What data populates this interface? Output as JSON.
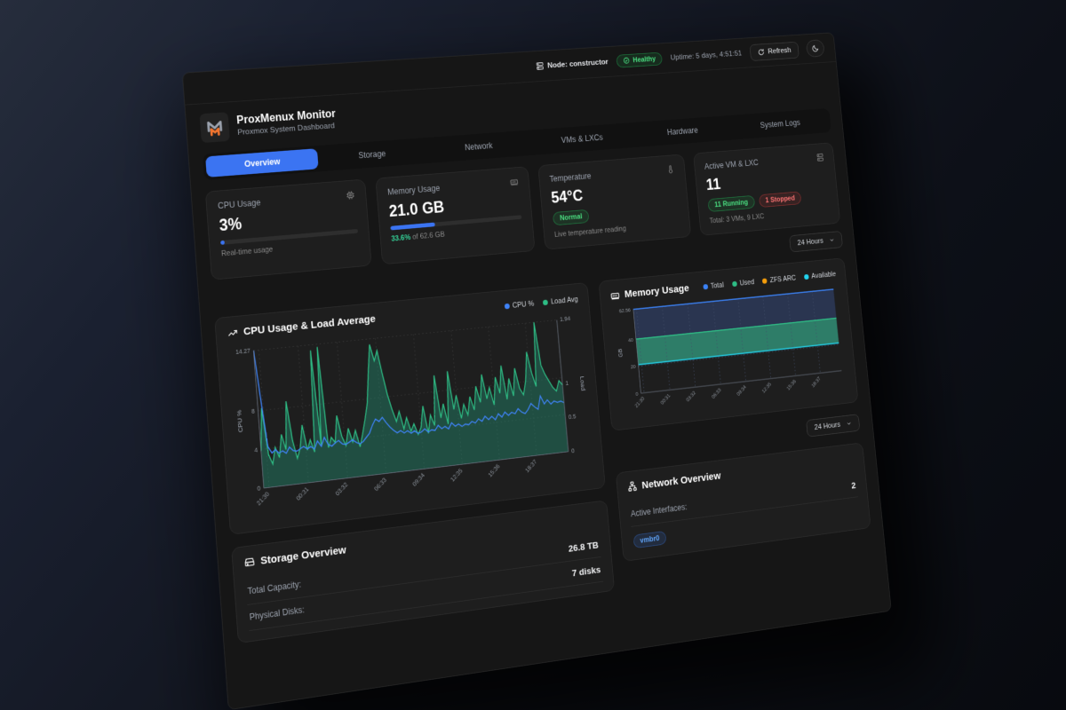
{
  "topbar": {
    "node_label": "Node: constructor",
    "health_badge": "Healthy",
    "uptime": "Uptime: 5 days, 4:51:51",
    "refresh_label": "Refresh"
  },
  "header": {
    "title": "ProxMenux Monitor",
    "subtitle": "Proxmox System Dashboard"
  },
  "tabs": [
    {
      "label": "Overview",
      "active": true
    },
    {
      "label": "Storage",
      "active": false
    },
    {
      "label": "Network",
      "active": false
    },
    {
      "label": "VMs & LXCs",
      "active": false
    },
    {
      "label": "Hardware",
      "active": false
    },
    {
      "label": "System Logs",
      "active": false
    }
  ],
  "stat_cards": {
    "cpu": {
      "title": "CPU Usage",
      "value": "3%",
      "percent": 3,
      "caption": "Real-time usage"
    },
    "memory": {
      "title": "Memory Usage",
      "value": "21.0 GB",
      "percent": 33.6,
      "caption_highlight": "33.6%",
      "caption_rest": "of 62.6 GB"
    },
    "temperature": {
      "title": "Temperature",
      "value": "54°C",
      "badge": "Normal",
      "caption": "Live temperature reading"
    },
    "vms": {
      "title": "Active VM & LXC",
      "value": "11",
      "running_badge": "11 Running",
      "stopped_badge": "1 Stopped",
      "caption": "Total: 3 VMs, 9 LXC"
    }
  },
  "time_range_1": {
    "label": "24 Hours"
  },
  "time_range_2": {
    "label": "24 Hours"
  },
  "storage": {
    "title": "Storage Overview",
    "rows": [
      {
        "label": "Total Capacity:",
        "value": "26.8 TB"
      },
      {
        "label": "Physical Disks:",
        "value": "7 disks"
      }
    ]
  },
  "network": {
    "title": "Network Overview",
    "rows": [
      {
        "label": "Active Interfaces:",
        "value": "2"
      }
    ],
    "interface_badge": "vmbr0"
  },
  "colors": {
    "accent_blue": "#3b74f2",
    "green": "#2ebd85",
    "cyan": "#22d3ee",
    "orange": "#f59e0b",
    "red": "#ef4444"
  },
  "chart_data": [
    {
      "type": "line",
      "title": "CPU Usage & Load Average",
      "x_ticks": [
        "21:30",
        "00:31",
        "03:32",
        "06:33",
        "09:34",
        "12:35",
        "15:36",
        "18:37"
      ],
      "left_axis": {
        "label": "CPU %",
        "ticks": [
          0,
          4,
          8,
          14.27
        ],
        "max": 14.27
      },
      "right_axis": {
        "label": "Load",
        "ticks": [
          0,
          0.5,
          1,
          1.94
        ],
        "max": 1.94
      },
      "grid": true,
      "legend_position": "top-right",
      "series": [
        {
          "name": "CPU %",
          "color": "#3f83f8",
          "axis": "left",
          "fill": false,
          "values": [
            14.27,
            9.0,
            4.2,
            3.5,
            3.8,
            3.4,
            3.6,
            3.3,
            3.9,
            3.5,
            3.4,
            3.6,
            3.8,
            3.5,
            3.7,
            3.4,
            4.2,
            3.6,
            4.5,
            3.7,
            3.5,
            3.8,
            4.0,
            3.6,
            3.5,
            3.7,
            3.9,
            3.6,
            3.4,
            3.6,
            4.0,
            4.4,
            5.2,
            5.8,
            5.5,
            5.9,
            5.3,
            4.8,
            4.4,
            4.1,
            4.3,
            4.0,
            4.2,
            3.9,
            4.1,
            3.8,
            3.9,
            4.2,
            3.8,
            4.0,
            3.9,
            4.4,
            4.0,
            4.2,
            3.9,
            4.5,
            4.1,
            4.3,
            4.0,
            4.2,
            4.1,
            4.4,
            4.2,
            4.6,
            4.3,
            4.8,
            4.4,
            4.7,
            4.3,
            4.9,
            4.5,
            5.0,
            4.6,
            4.9,
            4.7,
            5.2,
            4.8,
            4.6,
            5.0,
            5.6,
            5.2,
            4.9,
            6.3,
            5.4,
            5.8,
            5.3,
            5.6,
            5.4,
            5.5,
            5.3
          ]
        },
        {
          "name": "Load Avg",
          "color": "#2ebd85",
          "axis": "right",
          "fill": true,
          "values": [
            0.52,
            1.12,
            0.46,
            0.32,
            0.55,
            0.4,
            0.72,
            0.5,
            1.18,
            0.62,
            0.36,
            0.5,
            0.82,
            0.46,
            0.6,
            0.42,
            1.86,
            0.5,
            1.9,
            0.46,
            0.6,
            0.52,
            0.9,
            0.6,
            0.46,
            0.7,
            0.5,
            0.66,
            0.42,
            0.6,
            0.8,
            1.02,
            1.46,
            1.86,
            1.62,
            1.76,
            1.42,
            1.12,
            0.9,
            0.72,
            0.86,
            0.6,
            0.76,
            0.56,
            0.66,
            0.5,
            0.6,
            0.9,
            0.5,
            0.76,
            0.6,
            1.32,
            0.7,
            0.9,
            0.6,
            1.36,
            0.8,
            1.0,
            0.66,
            0.86,
            0.7,
            0.96,
            0.76,
            1.1,
            0.86,
            1.26,
            0.9,
            1.06,
            0.8,
            1.2,
            0.96,
            1.36,
            0.86,
            1.16,
            0.9,
            1.3,
            1.0,
            0.9,
            1.1,
            1.52,
            1.2,
            1.0,
            1.94,
            1.3,
            1.16,
            1.06,
            0.96,
            0.9,
            1.05,
            0.98
          ]
        }
      ]
    },
    {
      "type": "area",
      "title": "Memory Usage",
      "ylabel": "GB",
      "x_ticks": [
        "21:30",
        "00:31",
        "03:32",
        "06:33",
        "09:34",
        "12:35",
        "15:36",
        "18:37"
      ],
      "y_ticks": [
        0,
        20,
        40,
        62.56
      ],
      "ylim": [
        0,
        62.56
      ],
      "grid": true,
      "legend_position": "top-right",
      "series": [
        {
          "name": "Total",
          "color": "#3b82f6",
          "values": [
            62.56,
            62.56
          ]
        },
        {
          "name": "Used",
          "color": "#2ebd85",
          "values": [
            40.3,
            40.3
          ]
        },
        {
          "name": "ZFS ARC",
          "color": "#f59e0b",
          "values": [
            19.0,
            19.0
          ]
        },
        {
          "name": "Available",
          "color": "#22d3ee",
          "values": [
            21.2,
            21.2
          ]
        }
      ]
    }
  ]
}
